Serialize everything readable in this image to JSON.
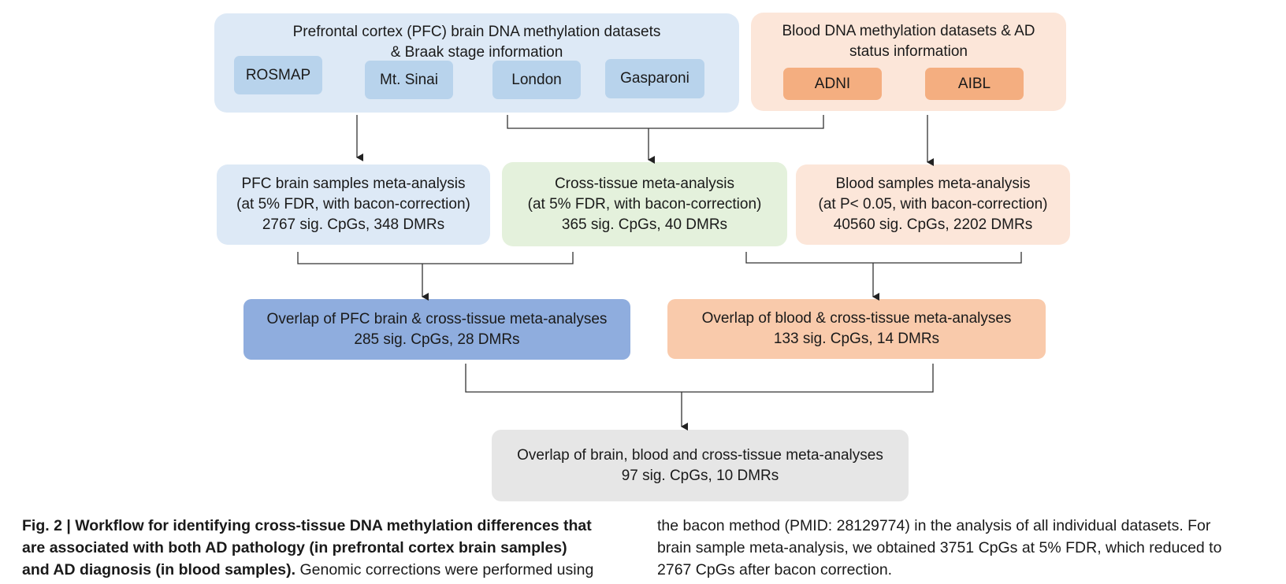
{
  "colors": {
    "brain_light": "#dde9f6",
    "brain_chip": "#b8d3ec",
    "blood_light": "#fce6d9",
    "blood_chip": "#f4ae80",
    "cross_green": "#e4f1dc",
    "overlap_brain": "#8fadde",
    "overlap_blood": "#f9caab",
    "final_gray": "#e6e6e6",
    "line": "#333333"
  },
  "sources": {
    "brain": {
      "title_line1": "Prefrontal cortex (PFC) brain DNA methylation datasets",
      "title_line2": "& Braak stage information",
      "datasets": [
        "ROSMAP",
        "Mt. Sinai",
        "London",
        "Gasparoni"
      ]
    },
    "blood": {
      "title_line1": "Blood DNA methylation datasets & AD",
      "title_line2": "status information",
      "datasets": [
        "ADNI",
        "AIBL"
      ]
    }
  },
  "meta_analyses": {
    "brain": {
      "line1": "PFC brain samples meta-analysis",
      "line2": "(at 5% FDR, with bacon-correction)",
      "line3": "2767 sig. CpGs, 348 DMRs"
    },
    "cross": {
      "line1": "Cross-tissue meta-analysis",
      "line2": "(at 5% FDR, with bacon-correction)",
      "line3": "365 sig. CpGs, 40 DMRs"
    },
    "blood": {
      "line1": "Blood samples meta-analysis",
      "line2": "(at P< 0.05, with bacon-correction)",
      "line3": "40560 sig. CpGs, 2202 DMRs"
    }
  },
  "overlaps": {
    "brain": {
      "line1": "Overlap of PFC brain & cross-tissue meta-analyses",
      "line2": "285 sig. CpGs, 28 DMRs"
    },
    "blood": {
      "line1": "Overlap of blood & cross-tissue meta-analyses",
      "line2": "133 sig. CpGs, 14 DMRs"
    }
  },
  "final": {
    "line1": "Overlap of brain, blood and cross-tissue meta-analyses",
    "line2": "97 sig. CpGs, 10 DMRs"
  },
  "caption": {
    "label": "Fig. 2 |",
    "bold_line1": "Workflow for identifying cross-tissue DNA methylation differences that",
    "bold_line2": "are associated with both AD pathology (in prefrontal cortex brain samples)",
    "bold_line3": "and AD diagnosis (in blood samples).",
    "text_line3": " Genomic corrections were performed using",
    "right_line1": "the bacon method (PMID: 28129774) in the analysis of all individual datasets. For",
    "right_line2": "brain sample meta-analysis, we obtained 3751 CpGs at 5% FDR, which reduced to",
    "right_line3": "2767 CpGs after bacon correction."
  }
}
